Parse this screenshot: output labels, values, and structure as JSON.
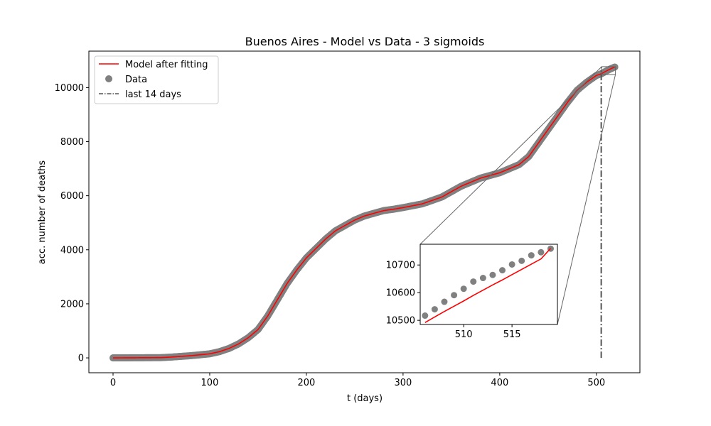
{
  "chart_data": {
    "type": "line",
    "title": "Buenos Aires - Model vs Data - 3 sigmoids",
    "xlabel": "t (days)",
    "ylabel": "acc. number of deaths",
    "xlim": [
      -25,
      545
    ],
    "ylim": [
      -550,
      11350
    ],
    "xticks": [
      0,
      100,
      200,
      300,
      400,
      500
    ],
    "yticks": [
      0,
      2000,
      4000,
      6000,
      8000,
      10000
    ],
    "grid": false,
    "legend_position": "top-left",
    "legend": [
      "Model after fitting",
      "Data",
      "last 14 days"
    ],
    "data_knots": {
      "t": [
        0,
        50,
        60,
        80,
        100,
        110,
        120,
        130,
        140,
        150,
        160,
        170,
        180,
        190,
        200,
        210,
        220,
        230,
        240,
        250,
        260,
        270,
        280,
        290,
        300,
        320,
        340,
        360,
        380,
        400,
        410,
        420,
        430,
        440,
        450,
        460,
        470,
        480,
        490,
        500,
        505,
        510,
        515,
        519
      ],
      "deaths": [
        0,
        10,
        30,
        80,
        150,
        230,
        350,
        520,
        750,
        1050,
        1550,
        2150,
        2750,
        3250,
        3700,
        4050,
        4400,
        4700,
        4900,
        5100,
        5250,
        5350,
        5450,
        5500,
        5560,
        5700,
        5950,
        6350,
        6650,
        6850,
        7000,
        7150,
        7450,
        7950,
        8450,
        8950,
        9450,
        9900,
        10200,
        10450,
        10510,
        10610,
        10700,
        10760
      ]
    },
    "vline": {
      "x": 505,
      "y_from": 0,
      "y_to": 10760,
      "label": "last 14 days"
    },
    "inset": {
      "xlim": [
        505.5,
        519.7
      ],
      "ylim": [
        10485,
        10775
      ],
      "xticks": [
        510,
        515
      ],
      "yticks": [
        10500,
        10600,
        10700
      ],
      "data_points": {
        "t": [
          506,
          507,
          508,
          509,
          510,
          511,
          512,
          513,
          514,
          515,
          516,
          517,
          518,
          519
        ],
        "deaths": [
          10517,
          10540,
          10567,
          10591,
          10614,
          10640,
          10653,
          10664,
          10681,
          10702,
          10715,
          10735,
          10746,
          10759
        ]
      },
      "model": {
        "t": [
          506,
          507,
          508,
          509,
          510,
          511,
          512,
          513,
          514,
          515,
          516,
          517,
          518,
          519
        ],
        "deaths": [
          10492,
          10512,
          10532,
          10551,
          10570,
          10590,
          10609,
          10628,
          10646,
          10665,
          10684,
          10703,
          10722,
          10760
        ]
      }
    },
    "colors": {
      "model": "#ff0000",
      "data": "#808080",
      "vline": "#555555",
      "frame": "#000000"
    }
  }
}
